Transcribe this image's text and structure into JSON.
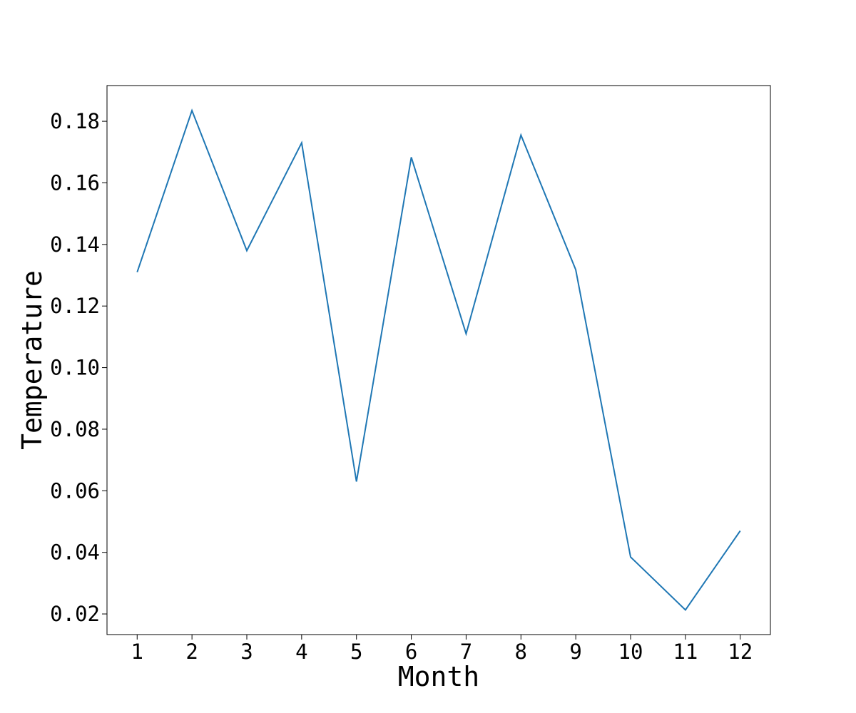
{
  "chart_data": {
    "type": "line",
    "title": "",
    "xlabel": "Month",
    "ylabel": "Temperature",
    "x": [
      1,
      2,
      3,
      4,
      5,
      6,
      7,
      8,
      9,
      10,
      11,
      12
    ],
    "xticks": [
      "1",
      "2",
      "3",
      "4",
      "5",
      "6",
      "7",
      "8",
      "9",
      "10",
      "11",
      "12"
    ],
    "xlim": [
      0.45,
      12.55
    ],
    "yticks": [
      "0.02",
      "0.04",
      "0.06",
      "0.08",
      "0.10",
      "0.12",
      "0.14",
      "0.16",
      "0.18"
    ],
    "ylim": [
      0.0133,
      0.1916
    ],
    "grid": false,
    "legend": "none",
    "series": [
      {
        "color": "#1f77b4",
        "values": [
          0.131,
          0.1835,
          0.138,
          0.173,
          0.063,
          0.1683,
          0.111,
          0.1755,
          0.1318,
          0.0385,
          0.0213,
          0.047
        ]
      }
    ]
  }
}
